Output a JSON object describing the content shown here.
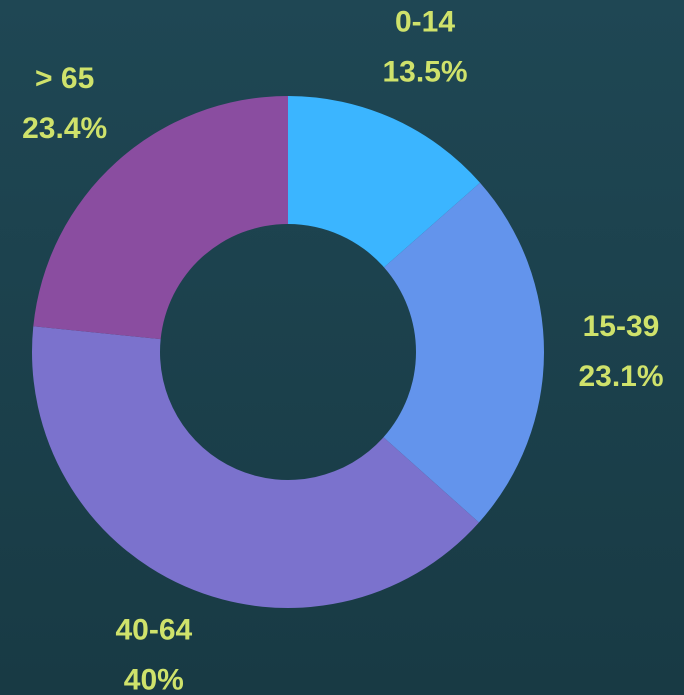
{
  "chart_data": {
    "type": "donut",
    "categories": [
      "0-14",
      "15-39",
      "40-64",
      "> 65"
    ],
    "values": [
      13.5,
      23.1,
      40,
      23.4
    ],
    "value_labels": [
      "13.5%",
      "23.1%",
      "40%",
      "23.4%"
    ],
    "colors": [
      "#3bb5ff",
      "#6394ec",
      "#7b72cd",
      "#8a4da0"
    ]
  }
}
